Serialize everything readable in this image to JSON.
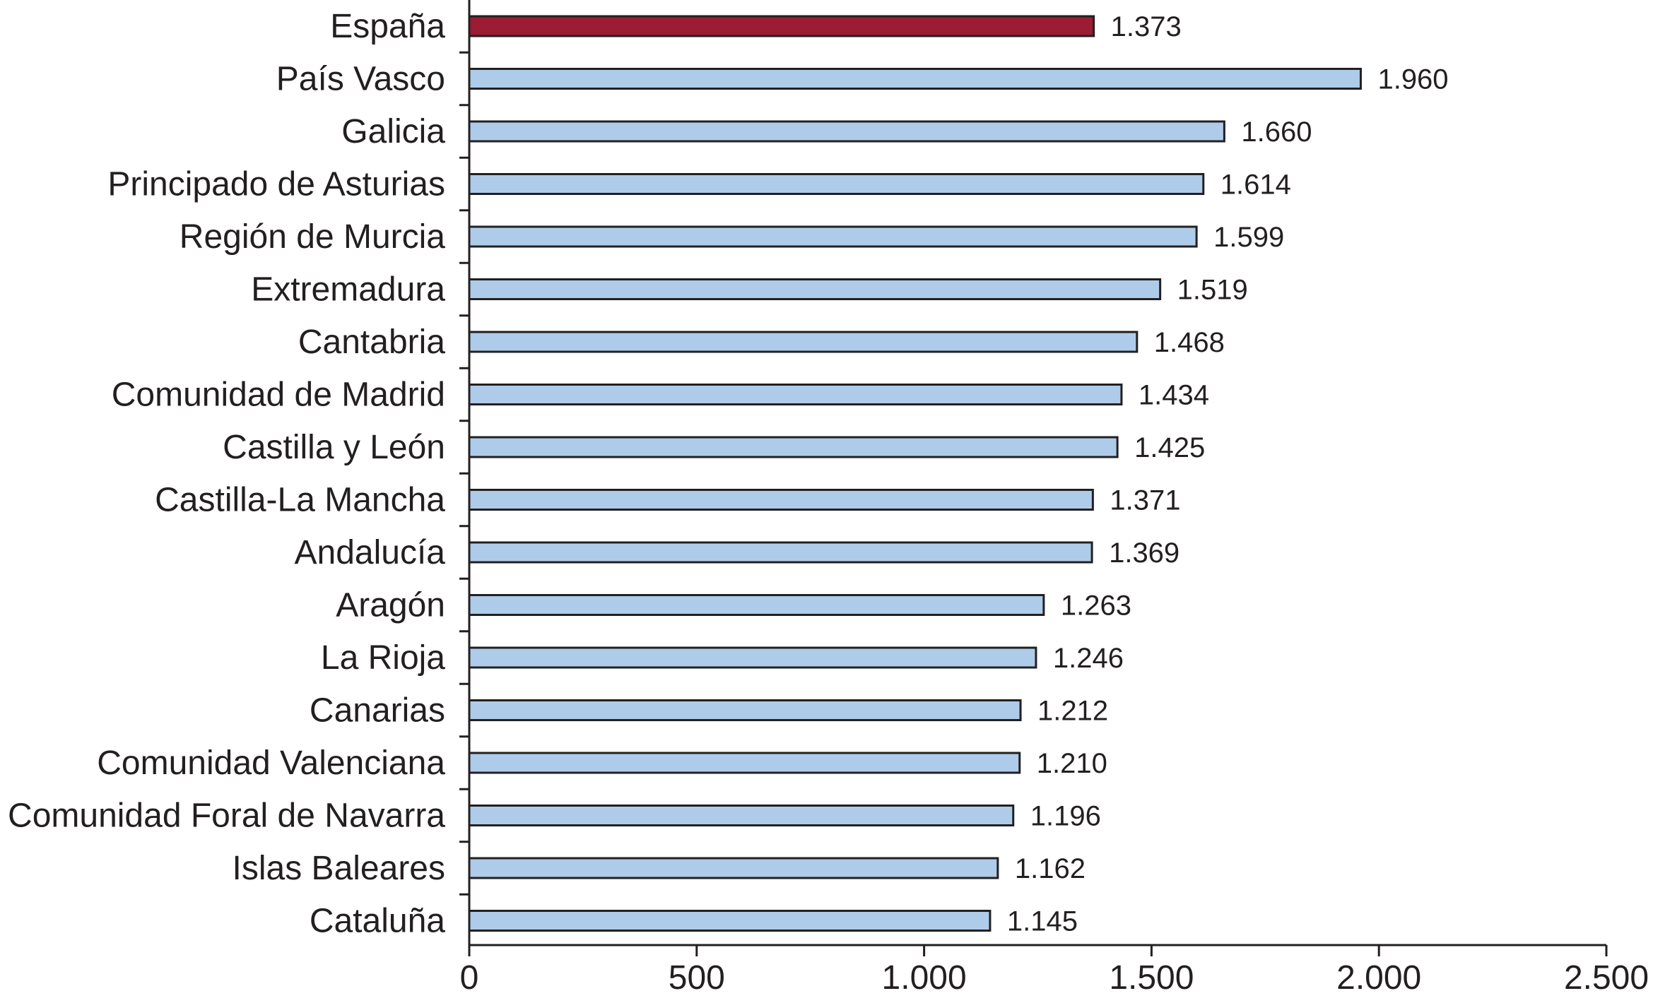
{
  "chart_data": {
    "type": "bar",
    "orientation": "horizontal",
    "categories": [
      "España",
      "País Vasco",
      "Galicia",
      "Principado de Asturias",
      "Región de Murcia",
      "Extremadura",
      "Cantabria",
      "Comunidad de Madrid",
      "Castilla y León",
      "Castilla-La Mancha",
      "Andalucía",
      "Aragón",
      "La Rioja",
      "Canarias",
      "Comunidad Valenciana",
      "Comunidad Foral de Navarra",
      "Islas Baleares",
      "Cataluña"
    ],
    "values": [
      1373,
      1960,
      1660,
      1614,
      1599,
      1519,
      1468,
      1434,
      1425,
      1371,
      1369,
      1263,
      1246,
      1212,
      1210,
      1196,
      1162,
      1145
    ],
    "value_labels": [
      "1.373",
      "1.960",
      "1.660",
      "1.614",
      "1.599",
      "1.519",
      "1.468",
      "1.434",
      "1.425",
      "1.371",
      "1.369",
      "1.263",
      "1.246",
      "1.212",
      "1.210",
      "1.196",
      "1.162",
      "1.145"
    ],
    "xlim": [
      0,
      2500
    ],
    "xticks": [
      0,
      500,
      1000,
      1500,
      2000,
      2500
    ],
    "xtick_labels": [
      "0",
      "500",
      "1.000",
      "1.500",
      "2.000",
      "2.500"
    ],
    "highlight_category": "España",
    "colors": {
      "bar": "#aecce9",
      "highlight": "#9b1c33",
      "stroke": "#231f20"
    },
    "grid": false,
    "legend": "none"
  }
}
